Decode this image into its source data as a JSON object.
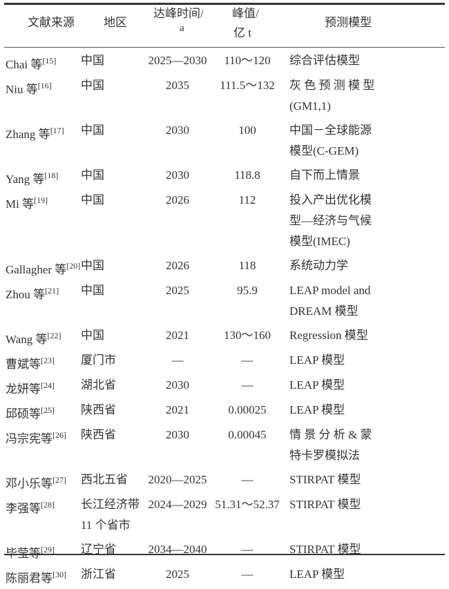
{
  "table": {
    "headers": {
      "source": "文献来源",
      "region": "地区",
      "peak_time": [
        "达峰时间/",
        "a"
      ],
      "peak_value": [
        "峰值/",
        "亿 t"
      ],
      "model": "预测模型"
    },
    "rows": [
      {
        "author": "Chai 等",
        "ref": "[15]",
        "region": [
          "中国"
        ],
        "year": "2025—2030",
        "value": "110～120",
        "model": [
          "综合评估模型"
        ]
      },
      {
        "author": "Niu 等",
        "ref": "[16]",
        "region": [
          "中国"
        ],
        "year": "2035",
        "value": "111.5～132",
        "model": [
          "灰 色 预 测 模 型",
          "(GM1,1)"
        ]
      },
      {
        "author": "Zhang 等",
        "ref": "[17]",
        "region": [
          "中国"
        ],
        "year": "2030",
        "value": "100",
        "model": [
          "中国－全球能源",
          "模型(C-GEM)"
        ]
      },
      {
        "author": "Yang 等",
        "ref": "[18]",
        "region": [
          "中国"
        ],
        "year": "2030",
        "value": "118.8",
        "model": [
          "自下而上情景"
        ]
      },
      {
        "author": "Mi 等",
        "ref": "[19]",
        "region": [
          "中国"
        ],
        "year": "2026",
        "value": "112",
        "model": [
          "投入产出优化模",
          "型—经济与气候",
          "模型(IMEC)"
        ]
      },
      {
        "author": "Gallagher 等",
        "ref": "[20]",
        "region": [
          "中国"
        ],
        "year": "2026",
        "value": "118",
        "model": [
          "系统动力学"
        ]
      },
      {
        "author": "Zhou 等",
        "ref": "[21]",
        "region": [
          "中国"
        ],
        "year": "2025",
        "value": "95.9",
        "model": [
          "LEAP model and",
          "DREAM 模型"
        ]
      },
      {
        "author": "Wang 等",
        "ref": "[22]",
        "region": [
          "中国"
        ],
        "year": "2021",
        "value": "130～160",
        "model": [
          "Regression 模型"
        ]
      },
      {
        "author": "曹斌等",
        "ref": "[23]",
        "region": [
          "厦门市"
        ],
        "year": "—",
        "value": "—",
        "model": [
          "LEAP 模型"
        ]
      },
      {
        "author": "龙妍等",
        "ref": "[24]",
        "region": [
          "湖北省"
        ],
        "year": "2030",
        "value": "—",
        "model": [
          "LEAP 模型"
        ]
      },
      {
        "author": "邱硕等",
        "ref": "[25]",
        "region": [
          "陕西省"
        ],
        "year": "2021",
        "value": "0.00025",
        "model": [
          "LEAP 模型"
        ]
      },
      {
        "author": "冯宗宪等",
        "ref": "[26]",
        "region": [
          "陕西省"
        ],
        "year": "2030",
        "value": "0.00045",
        "model": [
          "情 景 分 析 & 蒙",
          "特卡罗模拟法"
        ]
      },
      {
        "author": "邓小乐等",
        "ref": "[27]",
        "region": [
          "西北五省"
        ],
        "year": "2020—2025",
        "value": "—",
        "model": [
          "STIRPAT 模型"
        ]
      },
      {
        "author": "李强等",
        "ref": "[28]",
        "region": [
          "长江经济带",
          "11 个省市"
        ],
        "year": "2024—2029",
        "value": "51.31～52.37",
        "model": [
          "STIRPAT 模型"
        ]
      },
      {
        "author": "毕莹等",
        "ref": "[29]",
        "region": [
          "辽宁省"
        ],
        "year": "2034—2040",
        "value": "—",
        "model": [
          "STIRPAT 模型"
        ]
      },
      {
        "author": "陈丽君等",
        "ref": "[30]",
        "region": [
          "浙江省"
        ],
        "year": "2025",
        "value": "—",
        "model": [
          "LEAP 模型"
        ]
      }
    ]
  }
}
